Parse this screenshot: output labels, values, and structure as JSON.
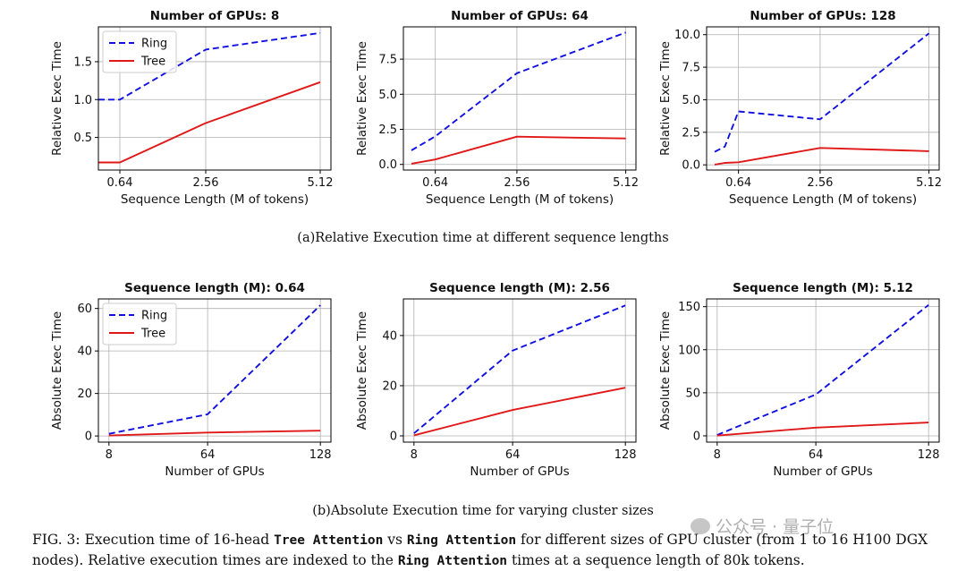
{
  "figure": {
    "caption_a": "(a)Relative Execution time at different sequence lengths",
    "caption_b": "(b)Absolute Execution time for varying cluster sizes",
    "caption_label": "FIG. 3:",
    "caption_p1": " Execution time of 16-head ",
    "caption_code1": "Tree Attention",
    "caption_p2": " vs ",
    "caption_code2": "Ring Attention",
    "caption_p3": " for different sizes of GPU cluster (from 1 to 16 H100 DGX nodes). Relative execution times are indexed to the ",
    "caption_code3": "Ring Attention",
    "caption_p4": " times at a sequence length of 80k tokens.",
    "watermark": "公众号 · 量子位"
  },
  "chart_data": [
    {
      "type": "line",
      "row": 0,
      "col": 0,
      "title": "Number of GPUs: 8",
      "xlabel": "Sequence Length (M of tokens)",
      "ylabel": "Relative Exec Time",
      "xlim": [
        0.16,
        5.36
      ],
      "ylim": [
        0.07,
        1.96
      ],
      "xticks": [
        0.64,
        2.56,
        5.12
      ],
      "xtick_labels": [
        "0.64",
        "2.56",
        "5.12"
      ],
      "yticks": [
        0.5,
        1.0,
        1.5
      ],
      "ytick_labels": [
        "0.5",
        "1.0",
        "1.5"
      ],
      "legend": true,
      "series": [
        {
          "name": "Ring",
          "color": "#1010e0",
          "dash": true,
          "x": [
            0.16,
            0.64,
            2.56,
            5.12
          ],
          "y": [
            1.0,
            1.0,
            1.66,
            1.88
          ]
        },
        {
          "name": "Tree",
          "color": "#e01818",
          "dash": false,
          "x": [
            0.16,
            0.64,
            2.56,
            5.12
          ],
          "y": [
            0.17,
            0.17,
            0.69,
            1.23
          ]
        }
      ]
    },
    {
      "type": "line",
      "row": 0,
      "col": 1,
      "title": "Number of GPUs: 64",
      "xlabel": "Sequence Length (M of tokens)",
      "ylabel": "Relative Exec Time",
      "xlim": [
        -0.11,
        5.36
      ],
      "ylim": [
        -0.4,
        9.8
      ],
      "xticks": [
        0.64,
        2.56,
        5.12
      ],
      "xtick_labels": [
        "0.64",
        "2.56",
        "5.12"
      ],
      "yticks": [
        0.0,
        2.5,
        5.0,
        7.5
      ],
      "ytick_labels": [
        "0.0",
        "2.5",
        "5.0",
        "7.5"
      ],
      "legend": false,
      "series": [
        {
          "name": "Ring",
          "color": "#1010e0",
          "dash": true,
          "x": [
            0.08,
            0.64,
            2.56,
            5.12
          ],
          "y": [
            1.0,
            2.0,
            6.5,
            9.4
          ]
        },
        {
          "name": "Tree",
          "color": "#e01818",
          "dash": false,
          "x": [
            0.08,
            0.64,
            2.56,
            5.12
          ],
          "y": [
            0.05,
            0.35,
            1.98,
            1.85
          ]
        }
      ]
    },
    {
      "type": "line",
      "row": 0,
      "col": 2,
      "title": "Number of GPUs: 128",
      "xlabel": "Sequence Length (M of tokens)",
      "ylabel": "Relative Exec Time",
      "xlim": [
        -0.11,
        5.36
      ],
      "ylim": [
        -0.4,
        10.6
      ],
      "xticks": [
        0.64,
        2.56,
        5.12
      ],
      "xtick_labels": [
        "0.64",
        "2.56",
        "5.12"
      ],
      "yticks": [
        0.0,
        2.5,
        5.0,
        7.5,
        10.0
      ],
      "ytick_labels": [
        "0.0",
        "2.5",
        "5.0",
        "7.5",
        "10.0"
      ],
      "legend": false,
      "series": [
        {
          "name": "Ring",
          "color": "#1010e0",
          "dash": true,
          "x": [
            0.08,
            0.32,
            0.64,
            2.56,
            5.12
          ],
          "y": [
            1.0,
            1.4,
            4.1,
            3.5,
            10.1
          ]
        },
        {
          "name": "Tree",
          "color": "#e01818",
          "dash": false,
          "x": [
            0.08,
            0.32,
            0.64,
            2.56,
            5.12
          ],
          "y": [
            0.02,
            0.15,
            0.2,
            1.3,
            1.05
          ]
        }
      ]
    },
    {
      "type": "line",
      "row": 1,
      "col": 0,
      "title": "Sequence length (M): 0.64",
      "xlabel": "Number of GPUs",
      "ylabel": "Absolute Exec Time",
      "xlim": [
        2,
        134
      ],
      "ylim": [
        -2.9,
        64.5
      ],
      "xticks": [
        8,
        64,
        128
      ],
      "xtick_labels": [
        "8",
        "64",
        "128"
      ],
      "yticks": [
        0,
        20,
        40,
        60
      ],
      "ytick_labels": [
        "0",
        "20",
        "40",
        "60"
      ],
      "legend": true,
      "series": [
        {
          "name": "Ring",
          "color": "#1010e0",
          "dash": true,
          "x": [
            8,
            64,
            128
          ],
          "y": [
            1.0,
            10.2,
            61.5
          ]
        },
        {
          "name": "Tree",
          "color": "#e01818",
          "dash": false,
          "x": [
            8,
            64,
            128
          ],
          "y": [
            0.2,
            1.6,
            2.5
          ]
        }
      ]
    },
    {
      "type": "line",
      "row": 1,
      "col": 1,
      "title": "Sequence length (M): 2.56",
      "xlabel": "Number of GPUs",
      "ylabel": "Absolute Exec Time",
      "xlim": [
        2,
        134
      ],
      "ylim": [
        -2.5,
        54.6
      ],
      "xticks": [
        8,
        64,
        128
      ],
      "xtick_labels": [
        "8",
        "64",
        "128"
      ],
      "yticks": [
        0,
        20,
        40
      ],
      "ytick_labels": [
        "0",
        "20",
        "40"
      ],
      "legend": false,
      "series": [
        {
          "name": "Ring",
          "color": "#1010e0",
          "dash": true,
          "x": [
            8,
            64,
            128
          ],
          "y": [
            1.0,
            34.0,
            52.0
          ]
        },
        {
          "name": "Tree",
          "color": "#e01818",
          "dash": false,
          "x": [
            8,
            64,
            128
          ],
          "y": [
            0.2,
            10.3,
            19.2
          ]
        }
      ]
    },
    {
      "type": "line",
      "row": 1,
      "col": 2,
      "title": "Sequence length (M): 5.12",
      "xlabel": "Number of GPUs",
      "ylabel": "Absolute Exec Time",
      "xlim": [
        2,
        134
      ],
      "ylim": [
        -7.3,
        159.0
      ],
      "xticks": [
        8,
        64,
        128
      ],
      "xtick_labels": [
        "8",
        "64",
        "128"
      ],
      "yticks": [
        0,
        50,
        100,
        150
      ],
      "ytick_labels": [
        "0",
        "50",
        "100",
        "150"
      ],
      "legend": false,
      "series": [
        {
          "name": "Ring",
          "color": "#1010e0",
          "dash": true,
          "x": [
            8,
            64,
            128
          ],
          "y": [
            1.0,
            48.0,
            152.0
          ]
        },
        {
          "name": "Tree",
          "color": "#e01818",
          "dash": false,
          "x": [
            8,
            64,
            128
          ],
          "y": [
            0.3,
            9.5,
            15.5
          ]
        }
      ]
    }
  ]
}
